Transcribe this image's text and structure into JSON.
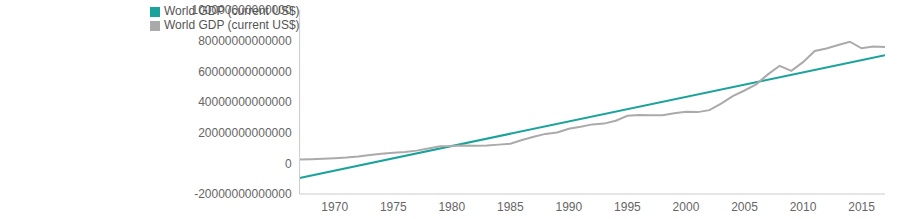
{
  "chart_data": {
    "type": "line",
    "x": [
      1967,
      1968,
      1969,
      1970,
      1971,
      1972,
      1973,
      1974,
      1975,
      1976,
      1977,
      1978,
      1979,
      1980,
      1981,
      1982,
      1983,
      1984,
      1985,
      1986,
      1987,
      1988,
      1989,
      1990,
      1991,
      1992,
      1993,
      1994,
      1995,
      1996,
      1997,
      1998,
      1999,
      2000,
      2001,
      2002,
      2003,
      2004,
      2005,
      2006,
      2007,
      2008,
      2009,
      2010,
      2011,
      2012,
      2013,
      2014,
      2015,
      2016,
      2017
    ],
    "series": [
      {
        "name": "World GDP (current US$)",
        "color": "#1aa39b",
        "x": [
          1967,
          2017
        ],
        "values": [
          -9500000000000,
          70500000000000
        ]
      },
      {
        "name": "World GDP (current US$)",
        "color": "#aaaaaa",
        "values": [
          2480000000000,
          2690000000000,
          2990000000000,
          3390000000000,
          3770000000000,
          4390000000000,
          5380000000000,
          6190000000000,
          6860000000000,
          7430000000000,
          8290000000000,
          9710000000000,
          11200000000000,
          11300000000000,
          11600000000000,
          11500000000000,
          11700000000000,
          12200000000000,
          12800000000000,
          15200000000000,
          17300000000000,
          19200000000000,
          20100000000000,
          22600000000000,
          23900000000000,
          25400000000000,
          25900000000000,
          27800000000000,
          31000000000000,
          31500000000000,
          31400000000000,
          31300000000000,
          32600000000000,
          33600000000000,
          33400000000000,
          34700000000000,
          39000000000000,
          43800000000000,
          47500000000000,
          51500000000000,
          58000000000000,
          63600000000000,
          60300000000000,
          66000000000000,
          73300000000000,
          74900000000000,
          77200000000000,
          79300000000000,
          75000000000000,
          76200000000000,
          75800000000000
        ]
      }
    ],
    "xlim": [
      1967,
      2017
    ],
    "xticks": [
      1970,
      1975,
      1980,
      1985,
      1990,
      1995,
      2000,
      2005,
      2010,
      2015
    ],
    "ylim": [
      -20000000000000,
      100000000000000
    ],
    "yticks": [
      -20000000000000,
      0,
      20000000000000,
      40000000000000,
      60000000000000,
      80000000000000,
      100000000000000
    ],
    "grid": false,
    "legend": "top-left"
  }
}
